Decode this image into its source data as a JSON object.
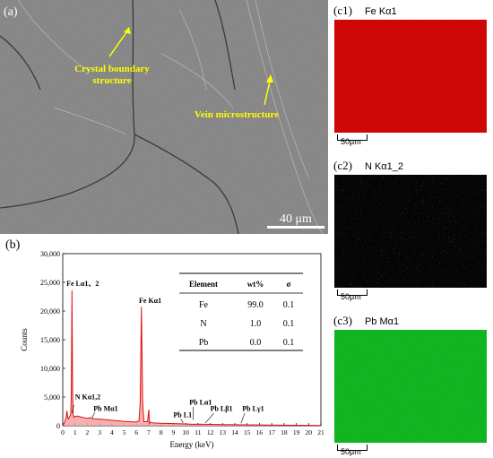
{
  "panel_a": {
    "label": "(a)",
    "annotations": [
      "Crystal boundary",
      "structure",
      "Vein microstructure"
    ],
    "scale_bar": "40 μm"
  },
  "panel_b": {
    "label": "(b)",
    "xlabel": "Energy (keV)",
    "ylabel": "Counts",
    "peak_labels": [
      "Fe Lα1、2",
      "Fe Kα1",
      "N Kα1,2",
      "Pb Mα1",
      "Pb Lα1",
      "Pb L1",
      "Pb Lβ1",
      "Pb Lγ1"
    ],
    "table": {
      "headers": [
        "Element",
        "wt%",
        "σ"
      ],
      "rows": [
        [
          "Fe",
          "99.0",
          "0.1"
        ],
        [
          "N",
          "1.0",
          "0.1"
        ],
        [
          "Pb",
          "0.0",
          "0.1"
        ]
      ]
    }
  },
  "maps": [
    {
      "label": "(c1)",
      "title": "Fe Kα1",
      "scale": "50μm",
      "color": "#d40b0b"
    },
    {
      "label": "(c2)",
      "title": "N Kα1_2",
      "scale": "50μm",
      "color": "#b8c414"
    },
    {
      "label": "(c3)",
      "title": "Pb Mα1",
      "scale": "50μm",
      "color": "#1fc33a"
    }
  ],
  "chart_data": {
    "type": "line",
    "xlabel": "Energy (keV)",
    "ylabel": "Counts",
    "xlim": [
      0,
      21
    ],
    "ylim": [
      0,
      30000
    ],
    "xticks": [
      0,
      1,
      2,
      3,
      4,
      5,
      6,
      7,
      8,
      9,
      10,
      11,
      12,
      13,
      14,
      15,
      16,
      17,
      18,
      19,
      20,
      21
    ],
    "yticks": [
      0,
      5000,
      10000,
      15000,
      20000,
      25000,
      30000
    ],
    "ytick_labels": [
      "0",
      "5,000",
      "10,000",
      "15,000",
      "20,000",
      "25,000",
      "30,000"
    ],
    "series": [
      {
        "x": [
          0.0,
          0.15,
          0.28,
          0.35,
          0.39,
          0.45,
          0.55,
          0.65,
          0.7,
          0.75,
          0.8,
          0.85,
          0.9,
          1.0,
          1.2,
          1.5,
          2.0,
          2.3,
          2.5,
          3.0,
          3.5,
          4.0,
          4.5,
          5.0,
          5.5,
          5.9,
          6.2,
          6.3,
          6.4,
          6.5,
          6.6,
          6.9,
          7.0,
          7.06,
          7.12,
          7.3,
          7.7,
          8.0,
          9.0,
          10.0,
          10.5,
          11.0,
          12.0,
          13.0,
          14.0,
          15.0,
          16.0,
          17.0,
          18.0,
          19.0,
          20.0,
          21.0
        ],
        "y": [
          0,
          600,
          1500,
          2600,
          1700,
          1200,
          1500,
          2000,
          6000,
          23600,
          6000,
          2000,
          1500,
          1600,
          1700,
          1500,
          1300,
          1400,
          1200,
          1150,
          1050,
          950,
          850,
          750,
          700,
          650,
          800,
          4000,
          20700,
          4000,
          700,
          700,
          2800,
          400,
          600,
          500,
          450,
          420,
          380,
          320,
          250,
          270,
          230,
          200,
          170,
          150,
          130,
          110,
          90,
          70,
          50,
          40
        ]
      }
    ]
  }
}
